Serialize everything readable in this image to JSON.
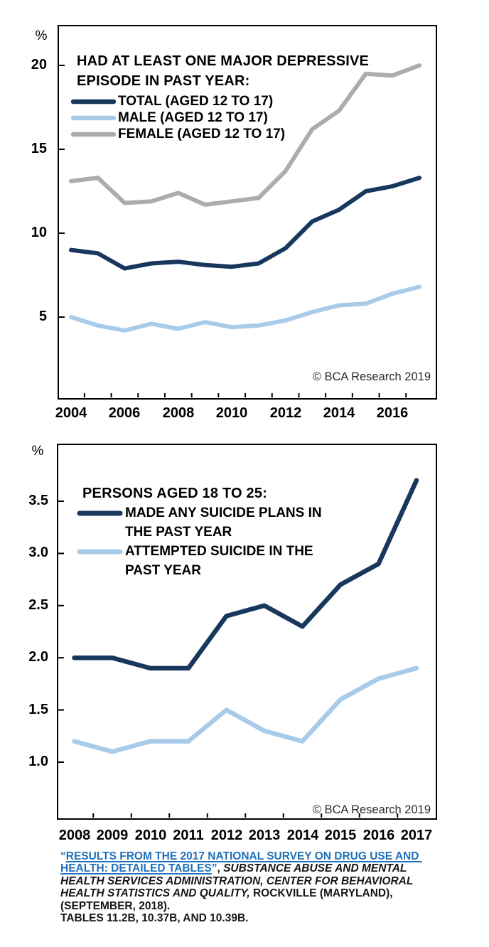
{
  "charts": [
    {
      "y_axis_symbol": "%",
      "title_lines": [
        "HAD AT LEAST ONE MAJOR DEPRESSIVE",
        "EPISODE IN PAST YEAR:"
      ],
      "copyright": "© BCA Research 2019",
      "chart_data": {
        "type": "line",
        "x": [
          2004,
          2005,
          2006,
          2007,
          2008,
          2009,
          2010,
          2011,
          2012,
          2013,
          2014,
          2015,
          2016,
          2017
        ],
        "xtick_labels": [
          "2004",
          "2006",
          "2008",
          "2010",
          "2012",
          "2014",
          "2016"
        ],
        "yticks": [
          "5",
          "10",
          "15",
          "20"
        ],
        "ytick_values": [
          5,
          10,
          15,
          20
        ],
        "ylim": [
          0.2,
          22.4
        ],
        "xlim": [
          2003.5,
          2017.6
        ],
        "ylabel": "%",
        "grid": false,
        "legend_position": "top-left",
        "series": [
          {
            "name_lines": [
              "TOTAL (AGED 12 TO 17)"
            ],
            "color": "#17375C",
            "values": [
              9.0,
              8.8,
              7.9,
              8.2,
              8.3,
              8.1,
              8.0,
              8.2,
              9.1,
              10.7,
              11.4,
              12.5,
              12.8,
              13.3
            ]
          },
          {
            "name_lines": [
              "MALE (AGED 12 TO 17)"
            ],
            "color": "#A8CBE9",
            "values": [
              5.0,
              4.5,
              4.2,
              4.6,
              4.3,
              4.7,
              4.4,
              4.5,
              4.8,
              5.3,
              5.7,
              5.8,
              6.4,
              6.8
            ]
          },
          {
            "name_lines": [
              "FEMALE (AGED 12 TO 17)"
            ],
            "color": "#ACACAC",
            "values": [
              13.1,
              13.3,
              11.8,
              11.9,
              12.4,
              11.7,
              11.9,
              12.1,
              13.7,
              16.2,
              17.3,
              19.5,
              19.4,
              20.0
            ]
          }
        ]
      }
    },
    {
      "y_axis_symbol": "%",
      "title_lines": [
        "PERSONS AGED 18 TO 25:"
      ],
      "copyright": "© BCA Research 2019",
      "chart_data": {
        "type": "line",
        "x": [
          2008,
          2009,
          2010,
          2011,
          2012,
          2013,
          2014,
          2015,
          2016,
          2017
        ],
        "xtick_labels": [
          "2008",
          "2009",
          "2010",
          "2011",
          "2012",
          "2013",
          "2014",
          "2015",
          "2016",
          "2017"
        ],
        "yticks": [
          "1.0",
          "1.5",
          "2.0",
          "2.5",
          "3.0",
          "3.5"
        ],
        "ytick_values": [
          1.0,
          1.5,
          2.0,
          2.5,
          3.0,
          3.5
        ],
        "ylim": [
          0.46,
          4.05
        ],
        "xlim": [
          2007.56,
          2017.44
        ],
        "ylabel": "%",
        "grid": false,
        "legend_position": "top-left",
        "series": [
          {
            "name_lines": [
              "MADE ANY SUICIDE PLANS IN",
              "THE PAST YEAR"
            ],
            "color": "#17375C",
            "values": [
              2.0,
              2.0,
              1.9,
              1.9,
              2.4,
              2.5,
              2.3,
              2.7,
              2.9,
              3.7
            ]
          },
          {
            "name_lines": [
              "ATTEMPTED SUICIDE IN THE",
              "PAST YEAR"
            ],
            "color": "#A8CBE9",
            "values": [
              1.2,
              1.1,
              1.2,
              1.2,
              1.5,
              1.3,
              1.2,
              1.6,
              1.8,
              1.9
            ]
          }
        ]
      }
    }
  ],
  "footer": {
    "link_color": "#1F70BC",
    "lines": [
      [
        {
          "style": "quote",
          "text": "“"
        },
        {
          "style": "link",
          "text": "RESULTS FROM THE 2017 NATIONAL SURVEY ON DRUG USE AND "
        }
      ],
      [
        {
          "style": "link",
          "text": "HEALTH: DETAILED TABLES"
        },
        {
          "style": "quote",
          "text": "”"
        },
        {
          "style": "plain",
          "text": ", "
        },
        {
          "style": "italic",
          "text": "SUBSTANCE ABUSE AND MENTAL"
        }
      ],
      [
        {
          "style": "italic",
          "text": "HEALTH SERVICES ADMINISTRATION, CENTER FOR BEHAVIORAL"
        }
      ],
      [
        {
          "style": "italic",
          "text": "HEALTH STATISTICS AND QUALITY,"
        },
        {
          "style": "plain",
          "text": " ROCKVILLE (MARYLAND),"
        }
      ],
      [
        {
          "style": "plain",
          "text": "(SEPTEMBER, 2018)."
        }
      ],
      [
        {
          "style": "plain",
          "text": "TABLES 11.2B, 10.37B, AND 10.39B."
        }
      ]
    ]
  }
}
